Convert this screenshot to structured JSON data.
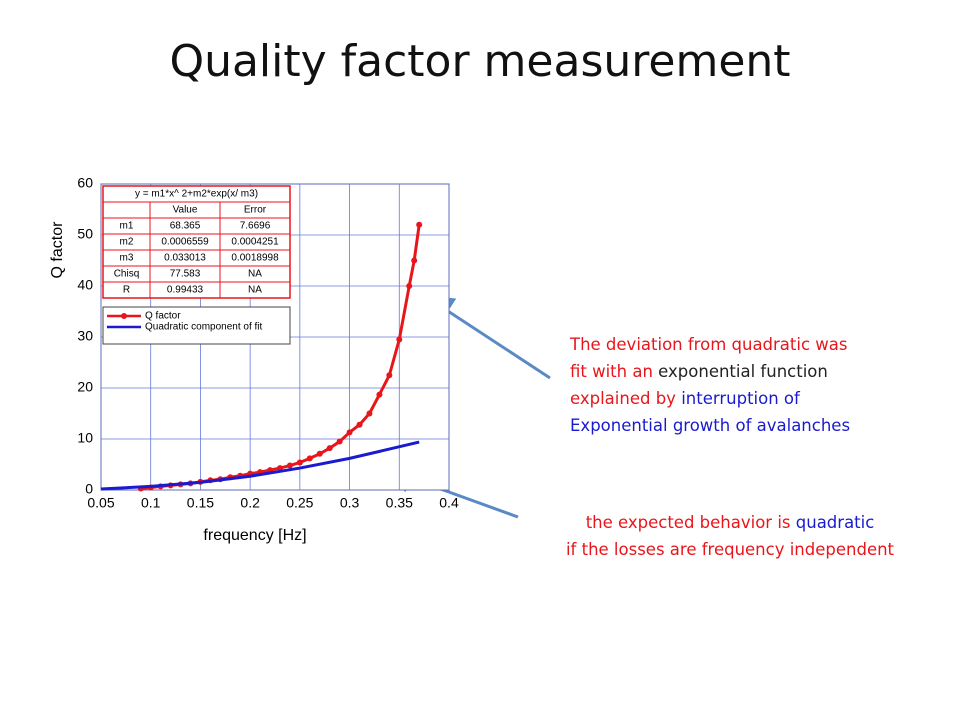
{
  "chart_data": {
    "type": "line",
    "title": "Quality factor measurement",
    "xlabel": "frequency [Hz]",
    "ylabel": "Q factor",
    "xlim": [
      0.05,
      0.4
    ],
    "ylim": [
      0,
      60
    ],
    "xticks": [
      0.05,
      0.1,
      0.15,
      0.2,
      0.25,
      0.3,
      0.35,
      0.4
    ],
    "yticks": [
      0,
      10,
      20,
      30,
      40,
      50,
      60
    ],
    "grid": true,
    "grid_color": "#6677dd",
    "series": [
      {
        "name": "Q factor",
        "color": "#e8161b",
        "markers": true,
        "x": [
          0.09,
          0.1,
          0.11,
          0.12,
          0.13,
          0.14,
          0.15,
          0.16,
          0.17,
          0.18,
          0.19,
          0.2,
          0.21,
          0.22,
          0.23,
          0.24,
          0.25,
          0.26,
          0.27,
          0.28,
          0.29,
          0.3,
          0.31,
          0.32,
          0.33,
          0.34,
          0.35,
          0.36,
          0.365,
          0.37
        ],
        "values": [
          0.3,
          0.5,
          0.7,
          0.9,
          1.1,
          1.3,
          1.6,
          1.9,
          2.1,
          2.5,
          2.8,
          3.2,
          3.5,
          3.9,
          4.3,
          4.8,
          5.4,
          6.2,
          7.1,
          8.2,
          9.5,
          11.3,
          12.8,
          15.0,
          18.7,
          22.5,
          29.5,
          40,
          45,
          52
        ]
      },
      {
        "name": "Quadratic component of fit",
        "color": "#1a1ad0",
        "markers": false,
        "x": [
          0.05,
          0.1,
          0.15,
          0.2,
          0.25,
          0.3,
          0.37
        ],
        "values": [
          0.2,
          0.7,
          1.5,
          2.7,
          4.3,
          6.2,
          9.4
        ]
      }
    ],
    "fit_table": {
      "title": "y = m1*x^ 2+m2*exp(x/ m3)",
      "columns": [
        "Value",
        "Error"
      ],
      "rows": [
        [
          "m1",
          "68.365",
          "7.6696"
        ],
        [
          "m2",
          "0.0006559",
          "0.0004251"
        ],
        [
          "m3",
          "0.033013",
          "0.0018998"
        ],
        [
          "Chisq",
          "77.583",
          "NA"
        ],
        [
          "R",
          "0.99433",
          "NA"
        ]
      ],
      "color": "#e8161b"
    },
    "annotations": [
      {
        "lines": [
          [
            {
              "text": "The deviation from quadratic was",
              "color": "#e8161b"
            }
          ],
          [
            {
              "text": "fit with an ",
              "color": "#e8161b"
            },
            {
              "text": "exponential function",
              "color": "#222222"
            }
          ],
          [
            {
              "text": "explained by ",
              "color": "#e8161b"
            },
            {
              "text": "interruption of",
              "color": "#1a1ad0"
            }
          ],
          [
            {
              "text": "Exponential growth of avalanches",
              "color": "#1a1ad0"
            }
          ]
        ]
      },
      {
        "lines": [
          [
            {
              "text": "the expected behavior is ",
              "color": "#e8161b"
            },
            {
              "text": "quadratic",
              "color": "#1a1ad0"
            }
          ],
          [
            {
              "text": "if the losses are frequency independent",
              "color": "#e8161b"
            }
          ]
        ]
      }
    ]
  }
}
